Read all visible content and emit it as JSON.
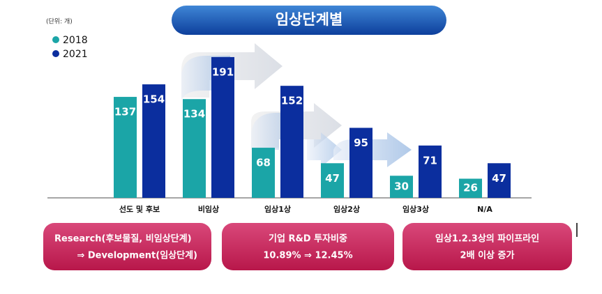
{
  "chart_data": {
    "type": "bar",
    "title": "임상단계별",
    "unit_note": "(단위: 개)",
    "categories": [
      "선도 및 후보",
      "비임상",
      "임상1상",
      "임상2상",
      "임상3상",
      "N/A"
    ],
    "series": [
      {
        "name": "2018",
        "color": "#1ba5a7",
        "values": [
          137,
          134,
          68,
          47,
          30,
          26
        ]
      },
      {
        "name": "2021",
        "color": "#0b2e9e",
        "values": [
          154,
          191,
          152,
          95,
          71,
          47
        ]
      }
    ],
    "legend": "top-left",
    "callouts": [
      {
        "lines": [
          "Research(후보물질, 비임상단계)",
          "⇒ Development(임상단계)"
        ]
      },
      {
        "lines": [
          "기업 R&D 투자비중",
          "10.89% ⇒ 12.45%"
        ]
      },
      {
        "lines": [
          "임상1.2.3상의 파이프라인",
          "2배 이상 증가"
        ]
      }
    ]
  }
}
